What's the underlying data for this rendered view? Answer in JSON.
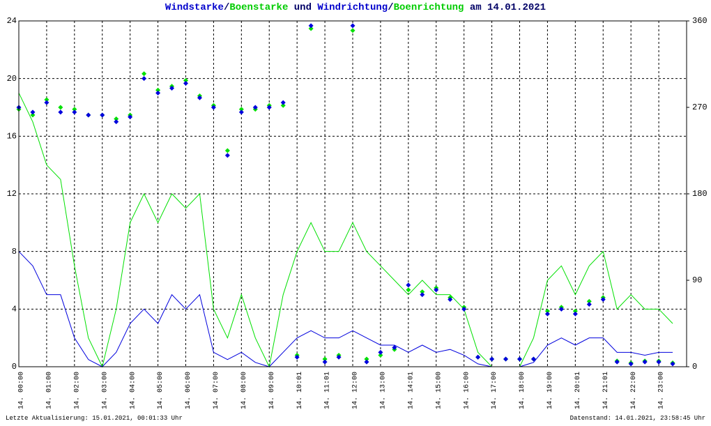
{
  "chart_data": {
    "type": "line",
    "title_parts": [
      {
        "text": "Windstarke",
        "color": "#0000cc"
      },
      {
        "text": "/",
        "color": "#000066"
      },
      {
        "text": "Boenstarke",
        "color": "#00cc00"
      },
      {
        "text": " und ",
        "color": "#000066"
      },
      {
        "text": "Windrichtung",
        "color": "#0000cc"
      },
      {
        "text": "/",
        "color": "#000066"
      },
      {
        "text": "Boenrichtung",
        "color": "#00cc00"
      },
      {
        "text": " am 14.01.2021",
        "color": "#000066"
      }
    ],
    "footer_left": "Letzte Aktualisierung: 15.01.2021, 00:01:33 Uhr",
    "footer_right": "Datenstand: 14.01.2021, 23:58:45 Uhr",
    "xlim": [
      0,
      24
    ],
    "xticks": [
      {
        "value": 0,
        "label": "14. 00:00"
      },
      {
        "value": 1,
        "label": "14. 01:00"
      },
      {
        "value": 2,
        "label": "14. 02:00"
      },
      {
        "value": 3,
        "label": "14. 03:00"
      },
      {
        "value": 4,
        "label": "14. 04:00"
      },
      {
        "value": 5,
        "label": "14. 05:00"
      },
      {
        "value": 6,
        "label": "14. 06:00"
      },
      {
        "value": 7,
        "label": "14. 07:00"
      },
      {
        "value": 8,
        "label": "14. 08:00"
      },
      {
        "value": 9,
        "label": "14. 09:00"
      },
      {
        "value": 10,
        "label": "14. 10:01"
      },
      {
        "value": 11,
        "label": "14. 11:01"
      },
      {
        "value": 12,
        "label": "14. 12:00"
      },
      {
        "value": 13,
        "label": "14. 13:00"
      },
      {
        "value": 14,
        "label": "14. 14:01"
      },
      {
        "value": 15,
        "label": "14. 15:00"
      },
      {
        "value": 16,
        "label": "14. 16:00"
      },
      {
        "value": 17,
        "label": "14. 17:00"
      },
      {
        "value": 18,
        "label": "14. 18:00"
      },
      {
        "value": 19,
        "label": "14. 19:00"
      },
      {
        "value": 20,
        "label": "14. 20:01"
      },
      {
        "value": 21,
        "label": "14. 21:01"
      },
      {
        "value": 22,
        "label": "14. 22:00"
      },
      {
        "value": 23,
        "label": "14. 23:00"
      }
    ],
    "ylim": [
      0,
      24
    ],
    "yticks": [
      0,
      4,
      8,
      12,
      16,
      20,
      24
    ],
    "y2lim": [
      0,
      360
    ],
    "y2ticks": [
      0,
      90,
      180,
      270,
      360
    ],
    "grid": true,
    "x": [
      0,
      0.5,
      1,
      1.5,
      2,
      2.5,
      3,
      3.5,
      4,
      4.5,
      5,
      5.5,
      6,
      6.5,
      7,
      7.5,
      8,
      8.5,
      9,
      9.5,
      10,
      10.5,
      11,
      11.5,
      12,
      12.5,
      13,
      13.5,
      14,
      14.5,
      15,
      15.5,
      16,
      16.5,
      17,
      17.5,
      18,
      18.5,
      19,
      19.5,
      20,
      20.5,
      21,
      21.5,
      22,
      22.5,
      23,
      23.5
    ],
    "series": [
      {
        "name": "Boenstarke",
        "type": "line",
        "color": "#00e000",
        "values": [
          19,
          17,
          14,
          13,
          7,
          2,
          0,
          4,
          10,
          12,
          10,
          12,
          11,
          12,
          4,
          2,
          5,
          2,
          0,
          5,
          8,
          10,
          8,
          8,
          10,
          8,
          7,
          6,
          5,
          6,
          5,
          5,
          4,
          1,
          0,
          0,
          0,
          2,
          6,
          7,
          5,
          7,
          8,
          4,
          5,
          4,
          4,
          3
        ]
      },
      {
        "name": "Windstarke",
        "type": "line",
        "color": "#0000dd",
        "values": [
          8,
          7,
          5,
          5,
          2,
          0.5,
          0,
          1,
          3,
          4,
          3,
          5,
          4,
          5,
          1,
          0.5,
          1,
          0.3,
          0,
          1,
          2,
          2.5,
          2,
          2,
          2.5,
          2,
          1.5,
          1.5,
          1,
          1.5,
          1,
          1.2,
          0.8,
          0.2,
          0,
          0,
          0,
          0.3,
          1.5,
          2,
          1.5,
          2,
          2,
          1,
          1,
          0.8,
          1,
          1
        ]
      },
      {
        "name": "Boenrichtung",
        "type": "scatter",
        "axis": "y2",
        "color": "#00e000",
        "values": [
          268,
          262,
          278,
          270,
          268,
          262,
          262,
          258,
          262,
          305,
          288,
          292,
          298,
          282,
          272,
          225,
          268,
          268,
          272,
          272,
          12,
          352,
          8,
          12,
          350,
          8,
          12,
          18,
          80,
          78,
          82,
          72,
          62,
          10,
          8,
          8,
          8,
          8,
          58,
          62,
          58,
          68,
          72,
          6,
          4,
          6,
          6,
          4
        ]
      },
      {
        "name": "Windrichtung",
        "type": "scatter",
        "axis": "y2",
        "color": "#0000dd",
        "values": [
          270,
          265,
          275,
          265,
          265,
          262,
          262,
          255,
          260,
          300,
          285,
          290,
          295,
          280,
          270,
          220,
          265,
          270,
          270,
          275,
          10,
          355,
          5,
          10,
          355,
          5,
          15,
          20,
          85,
          75,
          80,
          70,
          60,
          10,
          8,
          8,
          8,
          8,
          55,
          60,
          55,
          65,
          70,
          5,
          3,
          5,
          5,
          3
        ]
      }
    ]
  }
}
